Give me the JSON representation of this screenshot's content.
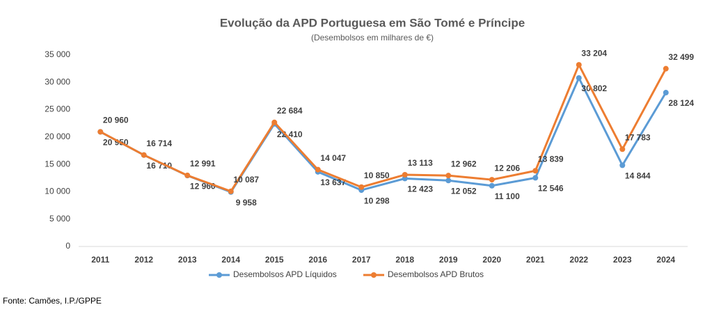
{
  "chart_data": {
    "type": "line",
    "title": "Evolução da APD Portuguesa em São Tomé e Príncipe",
    "subtitle": "(Desembolsos em milhares de €)",
    "source": "Fonte: Camões, I.P./GPPE",
    "categories": [
      "2011",
      "2012",
      "2013",
      "2014",
      "2015",
      "2016",
      "2017",
      "2018",
      "2019",
      "2020",
      "2021",
      "2022",
      "2023",
      "2024"
    ],
    "series": [
      {
        "name": "Desembolsos APD Líquidos",
        "color": "#5b9bd5",
        "values": [
          20950,
          16710,
          12960,
          9958,
          22410,
          13637,
          10298,
          12423,
          12052,
          11100,
          12546,
          30802,
          14844,
          28124
        ],
        "value_labels": [
          "20 950",
          "16 710",
          "12 960",
          "9 958",
          "22 410",
          "13 637",
          "10 298",
          "12 423",
          "12 052",
          "11 100",
          "12 546",
          "30 802",
          "14 844",
          "28 124"
        ]
      },
      {
        "name": "Desembolsos APD Brutos",
        "color": "#ed7d31",
        "values": [
          20960,
          16714,
          12991,
          10087,
          22684,
          14047,
          10850,
          13113,
          12962,
          12206,
          13839,
          33204,
          17783,
          32499
        ],
        "value_labels": [
          "20 960",
          "16 714",
          "12 991",
          "10 087",
          "22 684",
          "14 047",
          "10 850",
          "13 113",
          "12 962",
          "12 206",
          "13 839",
          "33 204",
          "17 783",
          "32 499"
        ]
      }
    ],
    "ylim": [
      0,
      35000
    ],
    "yticks": [
      0,
      {
        "value": 5000,
        "label": "5 000"
      },
      {
        "value": 10000,
        "label": "10 000"
      },
      {
        "value": 15000,
        "label": "15 000"
      },
      {
        "value": 20000,
        "label": "20 000"
      },
      {
        "value": 25000,
        "label": "25 000"
      },
      {
        "value": 30000,
        "label": "30 000"
      },
      {
        "value": 35000,
        "label": "35 000"
      }
    ],
    "grid": false,
    "legend": "bottom"
  }
}
